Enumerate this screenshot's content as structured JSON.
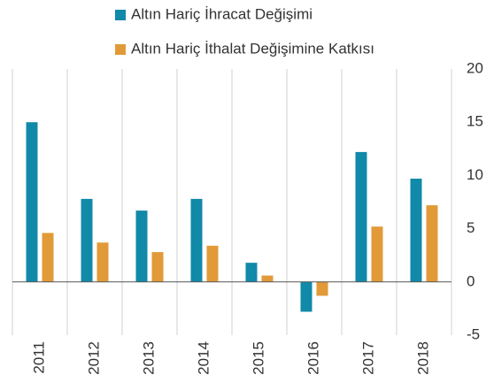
{
  "chart_data": {
    "type": "bar",
    "categories": [
      "2011",
      "2012",
      "2013",
      "2014",
      "2015",
      "2016",
      "2017",
      "2018"
    ],
    "series": [
      {
        "name": "Altın Hariç İhracat Değişimi",
        "color": "#1189a8",
        "values": [
          15.0,
          7.8,
          6.7,
          7.8,
          1.8,
          -2.8,
          12.2,
          9.7
        ]
      },
      {
        "name": "Altın Hariç İthalat Değişimine Katkısı",
        "color": "#e29a38",
        "values": [
          4.6,
          3.7,
          2.8,
          3.4,
          0.6,
          -1.3,
          5.2,
          7.2
        ]
      }
    ],
    "ylim": [
      -5,
      20
    ],
    "yticks": [
      -5,
      0,
      5,
      10,
      15,
      20
    ],
    "y_axis_side": "right",
    "legend": "top"
  }
}
